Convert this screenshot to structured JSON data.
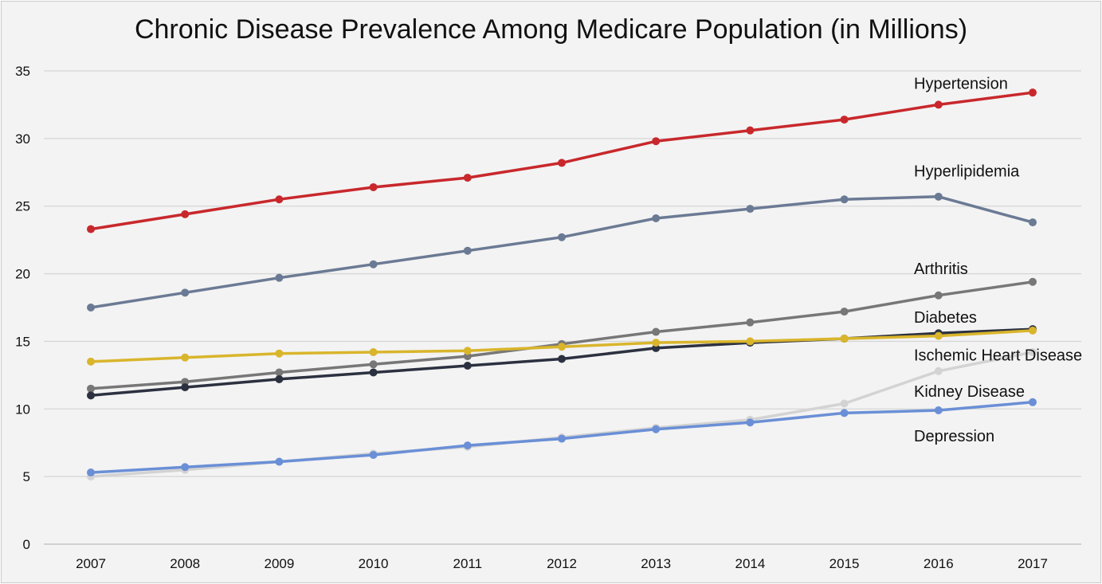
{
  "chart_data": {
    "type": "line",
    "title": "Chronic Disease Prevalence Among Medicare Population (in Millions)",
    "xlabel": "",
    "ylabel": "",
    "x": [
      "2007",
      "2008",
      "2009",
      "2010",
      "2011",
      "2012",
      "2013",
      "2014",
      "2015",
      "2016",
      "2017"
    ],
    "ylim": [
      0,
      35
    ],
    "yticks": [
      0,
      5,
      10,
      15,
      20,
      25,
      30,
      35
    ],
    "grid": "horizontal",
    "legend": "none (series names printed at right end of each line)",
    "series": [
      {
        "name": "Hypertension",
        "color": "#c8282c",
        "values": [
          23.3,
          24.4,
          25.5,
          26.4,
          27.1,
          28.2,
          29.8,
          30.6,
          31.4,
          32.5,
          33.4
        ]
      },
      {
        "name": "Hyperlipidemia",
        "color": "#6b7a94",
        "values": [
          17.5,
          18.6,
          19.7,
          20.7,
          21.7,
          22.7,
          24.1,
          24.8,
          25.5,
          25.7,
          23.8
        ]
      },
      {
        "name": "Arthritis",
        "color": "#777777",
        "values": [
          11.5,
          12.0,
          12.7,
          13.3,
          13.9,
          14.8,
          15.7,
          16.4,
          17.2,
          18.4,
          19.4
        ]
      },
      {
        "name": "Ischemic Heart Disease",
        "color": "#2c3140",
        "values": [
          11.0,
          11.6,
          12.2,
          12.7,
          13.2,
          13.7,
          14.5,
          14.9,
          15.2,
          15.6,
          15.9
        ]
      },
      {
        "name": "Diabetes",
        "color": "#d9b52c",
        "values": [
          13.5,
          13.8,
          14.1,
          14.2,
          14.3,
          14.6,
          14.9,
          15.0,
          15.2,
          15.4,
          15.8
        ]
      },
      {
        "name": "Kidney Disease",
        "color": "#d3d3d3",
        "values": [
          5.0,
          5.5,
          6.1,
          6.7,
          7.2,
          7.9,
          8.6,
          9.2,
          10.4,
          12.8,
          14.2
        ]
      },
      {
        "name": "Depression",
        "color": "#6a8fd6",
        "values": [
          5.3,
          5.7,
          6.1,
          6.6,
          7.3,
          7.8,
          8.5,
          9.0,
          9.7,
          9.9,
          10.5
        ]
      }
    ],
    "series_labels": [
      {
        "text": "Hypertension",
        "y_value": 34.1
      },
      {
        "text": "Hyperlipidemia",
        "y_value": 27.6
      },
      {
        "text": "Arthritis",
        "y_value": 20.4
      },
      {
        "text": "Diabetes",
        "y_value": 16.8
      },
      {
        "text": "Ischemic Heart Disease",
        "y_value": 14.0
      },
      {
        "text": "Kidney Disease",
        "y_value": 11.3
      },
      {
        "text": "Depression",
        "y_value": 8.0
      }
    ]
  }
}
